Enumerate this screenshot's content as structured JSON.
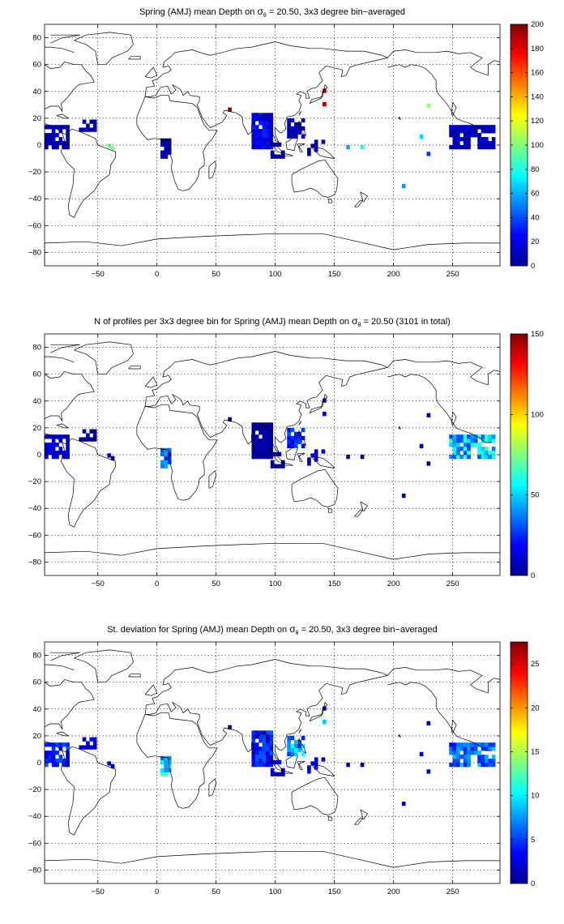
{
  "map_data": {
    "type": "heatmap",
    "projection": "equirectangular",
    "lon_range": [
      -95,
      290
    ],
    "lat_range": [
      -90,
      90
    ],
    "x_ticks": [
      -50,
      0,
      50,
      100,
      150,
      200,
      250
    ],
    "y_ticks": [
      -80,
      -60,
      -40,
      -20,
      0,
      20,
      40,
      60,
      80
    ],
    "grid": true,
    "colormap": "jet",
    "panels": [
      {
        "title_prefix": "Spring (AMJ) mean Depth on ",
        "symbol": "σ",
        "subscript": "θ",
        "title_suffix": " = 20.50, 3x3 degree bin−averaged",
        "cbar_range": [
          0,
          200
        ],
        "cbar_ticks": [
          0,
          20,
          40,
          60,
          80,
          100,
          120,
          140,
          160,
          180,
          200
        ],
        "region_values": [
          10,
          8,
          10,
          22,
          5,
          9,
          12,
          6
        ],
        "spot_values": [
          95,
          100,
          195,
          190,
          60,
          80,
          105,
          190,
          68,
          35,
          55
        ]
      },
      {
        "title_prefix": "N of profiles per 3x3 degree bin for Spring (AMJ) mean Depth on ",
        "symbol": "σ",
        "subscript": "θ",
        "title_suffix": " = 20.50 (3101 in total)",
        "cbar_range": [
          0,
          150
        ],
        "cbar_ticks": [
          0,
          50,
          100,
          150
        ],
        "region_values": [
          12,
          3,
          30,
          5,
          3,
          25,
          45,
          10
        ],
        "spot_values": [
          5,
          2,
          2,
          12,
          3,
          3,
          3,
          3,
          3,
          3,
          3
        ]
      },
      {
        "title_prefix": "St. deviation for Spring (AMJ) mean Depth on ",
        "symbol": "σ",
        "subscript": "θ",
        "title_suffix": " = 20.50, 3x3 degree bin−averaged",
        "cbar_range": [
          0,
          27.5
        ],
        "cbar_ticks": [
          0,
          5,
          10,
          15,
          20,
          25
        ],
        "region_values": [
          4,
          2,
          9,
          4,
          2,
          7,
          6,
          3
        ],
        "spot_values": [
          2,
          2,
          2,
          9,
          2,
          2,
          2,
          2,
          2,
          2,
          2
        ]
      }
    ]
  }
}
